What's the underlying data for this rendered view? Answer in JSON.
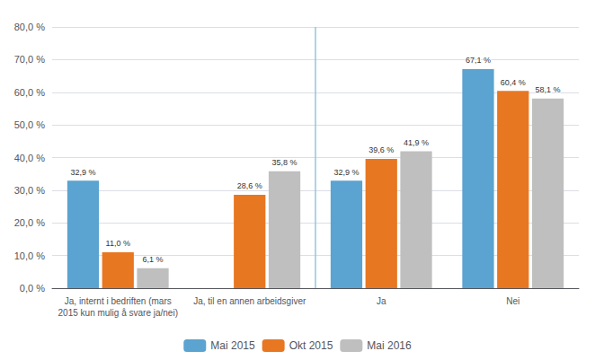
{
  "chart_data": {
    "type": "bar",
    "categories": [
      "Ja, internt i bedriften (mars\n2015 kun mulig å svare ja/nei)",
      "Ja, til en annen arbeidsgiver",
      "Ja",
      "Nei"
    ],
    "series": [
      {
        "name": "Mai 2015",
        "color": "#5BA3D0",
        "values": [
          32.9,
          null,
          32.9,
          67.1
        ],
        "value_labels": [
          "32,9 %",
          null,
          "32,9 %",
          "67,1 %"
        ]
      },
      {
        "name": "Okt 2015",
        "color": "#E87722",
        "values": [
          11.0,
          28.6,
          39.6,
          60.4
        ],
        "value_labels": [
          "11,0 %",
          "28,6 %",
          "39,6 %",
          "60,4 %"
        ]
      },
      {
        "name": "Mai 2016",
        "color": "#BFBFBF",
        "values": [
          6.1,
          35.8,
          41.9,
          58.1
        ],
        "value_labels": [
          "6,1 %",
          "35,8 %",
          "41,9 %",
          "58,1 %"
        ]
      }
    ],
    "ylim": [
      0,
      80
    ],
    "yticks": [
      {
        "value": 0,
        "label": "0,0 %"
      },
      {
        "value": 10,
        "label": "10,0 %"
      },
      {
        "value": 20,
        "label": "20,0 %"
      },
      {
        "value": 30,
        "label": "30,0 %"
      },
      {
        "value": 40,
        "label": "40,0 %"
      },
      {
        "value": 50,
        "label": "50,0 %"
      },
      {
        "value": 60,
        "label": "60,0 %"
      },
      {
        "value": 70,
        "label": "70,0 %"
      },
      {
        "value": 80,
        "label": "80,0 %"
      }
    ],
    "grid": true,
    "legend": "bottom",
    "data_labels": true
  }
}
